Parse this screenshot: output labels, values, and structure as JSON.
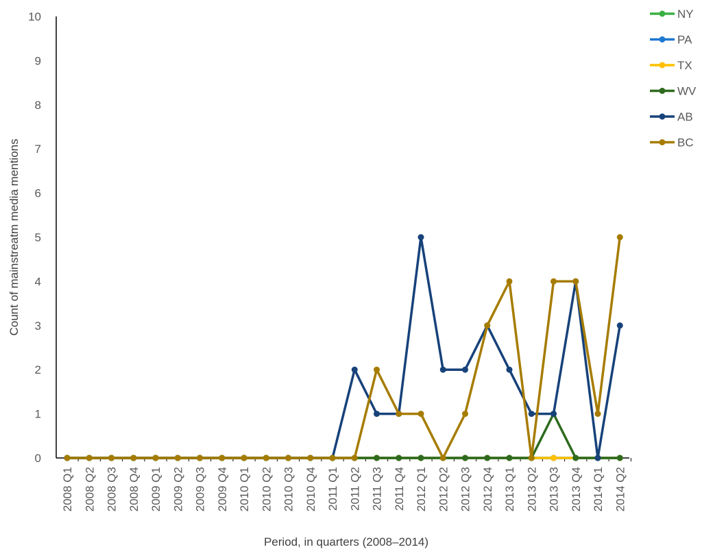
{
  "chart_data": {
    "type": "line",
    "title": "",
    "xlabel": "Period, in quarters (2008–2014)",
    "ylabel": "Count of mainstreatm media mentions",
    "ylim": [
      0,
      10
    ],
    "yticks": [
      "0",
      "1",
      "2",
      "3",
      "4",
      "5",
      "6",
      "7",
      "8",
      "9",
      "10"
    ],
    "grid": false,
    "legend_position": "right",
    "categories": [
      "2008 Q1",
      "2008 Q2",
      "2008 Q3",
      "2008 Q4",
      "2009 Q1",
      "2009 Q2",
      "2009 Q3",
      "2009 Q4",
      "2010 Q1",
      "2010 Q2",
      "2010 Q3",
      "2010 Q4",
      "2011 Q1",
      "2011 Q2",
      "2011 Q3",
      "2011 Q4",
      "2012 Q1",
      "2012 Q2",
      "2012 Q3",
      "2012 Q4",
      "2013 Q1",
      "2013 Q2",
      "2013 Q3",
      "2013 Q4",
      "2014 Q1",
      "2014 Q2"
    ],
    "series": [
      {
        "name": "NY",
        "color": "#3cb043",
        "values": [
          0,
          0,
          0,
          0,
          0,
          0,
          0,
          0,
          0,
          0,
          0,
          0,
          0,
          0,
          0,
          0,
          0,
          0,
          0,
          0,
          0,
          0,
          0,
          0,
          0,
          0
        ]
      },
      {
        "name": "PA",
        "color": "#1f77d0",
        "values": [
          0,
          0,
          0,
          0,
          0,
          0,
          0,
          0,
          0,
          0,
          0,
          0,
          0,
          0,
          0,
          0,
          0,
          0,
          0,
          0,
          0,
          0,
          0,
          0,
          0,
          0
        ]
      },
      {
        "name": "TX",
        "color": "#ffc000",
        "values": [
          0,
          0,
          0,
          0,
          0,
          0,
          0,
          0,
          0,
          0,
          0,
          0,
          0,
          0,
          0,
          0,
          0,
          0,
          0,
          0,
          0,
          0,
          0,
          0,
          0,
          0
        ]
      },
      {
        "name": "WV",
        "color": "#2e6b1e",
        "values": [
          0,
          0,
          0,
          0,
          0,
          0,
          0,
          0,
          0,
          0,
          0,
          0,
          0,
          0,
          0,
          0,
          0,
          0,
          0,
          0,
          0,
          0,
          1,
          0,
          0,
          0
        ]
      },
      {
        "name": "AB",
        "color": "#17427a",
        "values": [
          0,
          0,
          0,
          0,
          0,
          0,
          0,
          0,
          0,
          0,
          0,
          0,
          0,
          2,
          1,
          1,
          5,
          2,
          2,
          3,
          2,
          1,
          1,
          4,
          0,
          3
        ]
      },
      {
        "name": "BC",
        "color": "#a67c00",
        "values": [
          0,
          0,
          0,
          0,
          0,
          0,
          0,
          0,
          0,
          0,
          0,
          0,
          0,
          0,
          2,
          1,
          1,
          0,
          1,
          3,
          4,
          0,
          4,
          4,
          1,
          5
        ]
      }
    ]
  }
}
